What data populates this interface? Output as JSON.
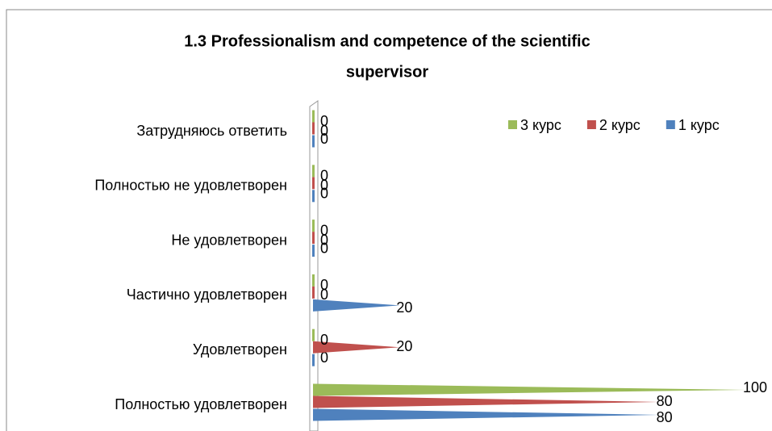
{
  "chart_data": {
    "type": "bar3d_horizontal",
    "title": [
      "1.3 Professionalism and competence of the scientific",
      "supervisor"
    ],
    "categories": [
      "Полностью удовлетворен",
      "Удовлетворен",
      "Частично удовлетворен",
      "Не удовлетворен",
      "Полностью не удовлетворен",
      "Затрудняюсь ответить"
    ],
    "series": [
      {
        "name": "1 курс",
        "color": "#4f81bd",
        "values": [
          80,
          0,
          20,
          0,
          0,
          0
        ]
      },
      {
        "name": "2 курс",
        "color": "#c0504d",
        "values": [
          80,
          20,
          0,
          0,
          0,
          0
        ]
      },
      {
        "name": "3 курс",
        "color": "#9bbb59",
        "values": [
          100,
          0,
          0,
          0,
          0,
          0
        ]
      }
    ],
    "legend": "top-right"
  }
}
